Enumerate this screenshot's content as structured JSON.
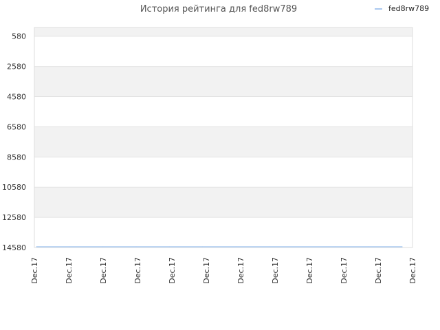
{
  "chart_data": {
    "type": "line",
    "title": "История рейтинга для fed8rw789",
    "xlabel": "",
    "ylabel": "",
    "y_axis_inverted": true,
    "ylim": [
      14580,
      0
    ],
    "yticks": [
      580,
      2580,
      4580,
      6580,
      8580,
      10580,
      12580,
      14580
    ],
    "x_tick_labels": [
      "Dec.17",
      "Dec.17",
      "Dec.17",
      "Dec.17",
      "Dec.17",
      "Dec.17",
      "Dec.17",
      "Dec.17",
      "Dec.17",
      "Dec.17",
      "Dec.17",
      "Dec.17"
    ],
    "grid": true,
    "legend_position": "top-right",
    "series": [
      {
        "name": "fed8rw789",
        "color": "#a9c8ef",
        "values": [
          14580,
          14580,
          14580,
          14580,
          14580,
          14580,
          14580,
          14580,
          14580,
          14580,
          14580,
          14580
        ]
      }
    ],
    "colors": {
      "band": "#f2f2f2",
      "grid": "#e2e2e2",
      "plot_border": "#dddddd"
    }
  }
}
